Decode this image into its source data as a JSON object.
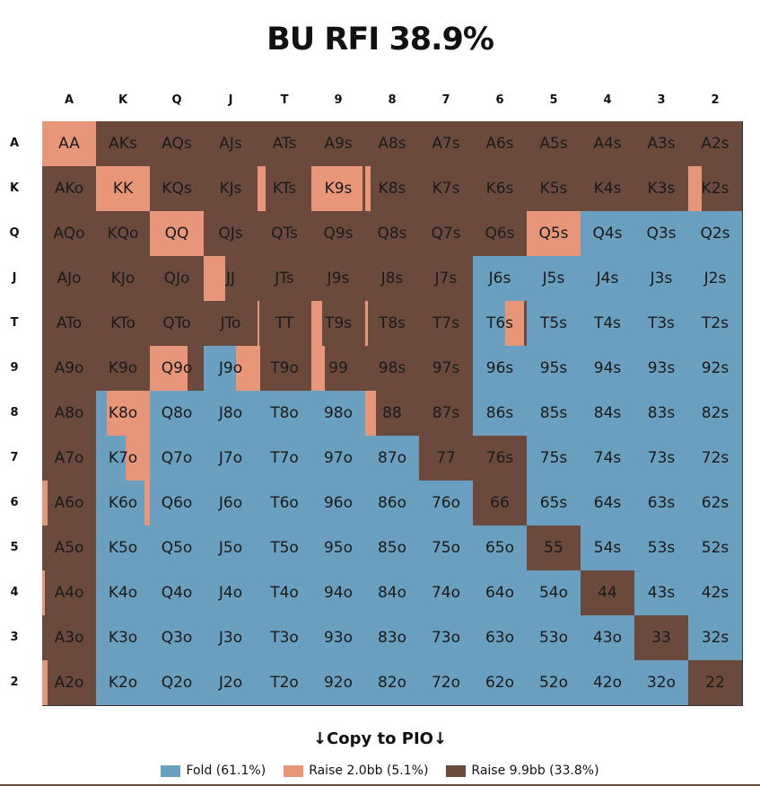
{
  "title": "BU RFI 38.9%",
  "ranks": [
    "A",
    "K",
    "Q",
    "J",
    "T",
    "9",
    "8",
    "7",
    "6",
    "5",
    "4",
    "3",
    "2"
  ],
  "colors": {
    "fold": "#6a9fbf",
    "raise2": "#e8967a",
    "raise99": "#6b4a3d"
  },
  "copy_label": "↓Copy to PIO↓",
  "legend": [
    {
      "key": "fold",
      "label": "Fold (61.1%)"
    },
    {
      "key": "raise2",
      "label": "Raise 2.0bb (5.1%)"
    },
    {
      "key": "raise99",
      "label": "Raise 9.9bb (33.8%)"
    }
  ],
  "hands": [
    [
      {
        "h": "AA",
        "f": 0,
        "r": 1
      },
      {
        "h": "AKs",
        "f": 0,
        "r": 0
      },
      {
        "h": "AQs",
        "f": 0,
        "r": 0
      },
      {
        "h": "AJs",
        "f": 0,
        "r": 0
      },
      {
        "h": "ATs",
        "f": 0,
        "r": 0
      },
      {
        "h": "A9s",
        "f": 0,
        "r": 0
      },
      {
        "h": "A8s",
        "f": 0,
        "r": 0
      },
      {
        "h": "A7s",
        "f": 0,
        "r": 0
      },
      {
        "h": "A6s",
        "f": 0,
        "r": 0
      },
      {
        "h": "A5s",
        "f": 0,
        "r": 0
      },
      {
        "h": "A4s",
        "f": 0,
        "r": 0
      },
      {
        "h": "A3s",
        "f": 0,
        "r": 0
      },
      {
        "h": "A2s",
        "f": 0,
        "r": 0
      }
    ],
    [
      {
        "h": "AKo",
        "f": 0,
        "r": 0
      },
      {
        "h": "KK",
        "f": 0,
        "r": 1
      },
      {
        "h": "KQs",
        "f": 0,
        "r": 0
      },
      {
        "h": "KJs",
        "f": 0,
        "r": 0
      },
      {
        "h": "KTs",
        "f": 0,
        "r": 0.15
      },
      {
        "h": "K9s",
        "f": 0,
        "r": 0.95
      },
      {
        "h": "K8s",
        "f": 0,
        "r": 0.1
      },
      {
        "h": "K7s",
        "f": 0,
        "r": 0
      },
      {
        "h": "K6s",
        "f": 0,
        "r": 0
      },
      {
        "h": "K5s",
        "f": 0,
        "r": 0
      },
      {
        "h": "K4s",
        "f": 0,
        "r": 0
      },
      {
        "h": "K3s",
        "f": 0,
        "r": 0
      },
      {
        "h": "K2s",
        "f": 0,
        "r": 0.25
      }
    ],
    [
      {
        "h": "AQo",
        "f": 0,
        "r": 0
      },
      {
        "h": "KQo",
        "f": 0,
        "r": 0
      },
      {
        "h": "QQ",
        "f": 0,
        "r": 1
      },
      {
        "h": "QJs",
        "f": 0,
        "r": 0
      },
      {
        "h": "QTs",
        "f": 0,
        "r": 0
      },
      {
        "h": "Q9s",
        "f": 0,
        "r": 0
      },
      {
        "h": "Q8s",
        "f": 0,
        "r": 0
      },
      {
        "h": "Q7s",
        "f": 0,
        "r": 0
      },
      {
        "h": "Q6s",
        "f": 0,
        "r": 0
      },
      {
        "h": "Q5s",
        "f": 0,
        "r": 1
      },
      {
        "h": "Q4s",
        "f": 1,
        "r": 0
      },
      {
        "h": "Q3s",
        "f": 1,
        "r": 0
      },
      {
        "h": "Q2s",
        "f": 1,
        "r": 0
      }
    ],
    [
      {
        "h": "AJo",
        "f": 0,
        "r": 0
      },
      {
        "h": "KJo",
        "f": 0,
        "r": 0
      },
      {
        "h": "QJo",
        "f": 0,
        "r": 0
      },
      {
        "h": "JJ",
        "f": 0,
        "r": 0.4
      },
      {
        "h": "JTs",
        "f": 0,
        "r": 0
      },
      {
        "h": "J9s",
        "f": 0,
        "r": 0
      },
      {
        "h": "J8s",
        "f": 0,
        "r": 0
      },
      {
        "h": "J7s",
        "f": 0,
        "r": 0
      },
      {
        "h": "J6s",
        "f": 1,
        "r": 0
      },
      {
        "h": "J5s",
        "f": 1,
        "r": 0
      },
      {
        "h": "J4s",
        "f": 1,
        "r": 0
      },
      {
        "h": "J3s",
        "f": 1,
        "r": 0
      },
      {
        "h": "J2s",
        "f": 1,
        "r": 0
      }
    ],
    [
      {
        "h": "ATo",
        "f": 0,
        "r": 0
      },
      {
        "h": "KTo",
        "f": 0,
        "r": 0
      },
      {
        "h": "QTo",
        "f": 0,
        "r": 0
      },
      {
        "h": "JTo",
        "f": 0,
        "r": 0
      },
      {
        "h": "TT",
        "f": 0,
        "r": 0.03
      },
      {
        "h": "T9s",
        "f": 0,
        "r": 0.2
      },
      {
        "h": "T8s",
        "f": 0,
        "r": 0.05
      },
      {
        "h": "T7s",
        "f": 0,
        "r": 0
      },
      {
        "h": "T6s",
        "f": 0.6,
        "r": 0.35
      },
      {
        "h": "T5s",
        "f": 1,
        "r": 0
      },
      {
        "h": "T4s",
        "f": 1,
        "r": 0
      },
      {
        "h": "T3s",
        "f": 1,
        "r": 0
      },
      {
        "h": "T2s",
        "f": 1,
        "r": 0
      }
    ],
    [
      {
        "h": "A9o",
        "f": 0,
        "r": 0
      },
      {
        "h": "K9o",
        "f": 0,
        "r": 0
      },
      {
        "h": "Q9o",
        "f": 0,
        "r": 0.7
      },
      {
        "h": "J9o",
        "f": 0.6,
        "r": 0.4
      },
      {
        "h": "T9o",
        "f": 0,
        "r": 0.05
      },
      {
        "h": "99",
        "f": 0,
        "r": 0.25
      },
      {
        "h": "98s",
        "f": 0,
        "r": 0
      },
      {
        "h": "97s",
        "f": 0,
        "r": 0
      },
      {
        "h": "96s",
        "f": 1,
        "r": 0
      },
      {
        "h": "95s",
        "f": 1,
        "r": 0
      },
      {
        "h": "94s",
        "f": 1,
        "r": 0
      },
      {
        "h": "93s",
        "f": 1,
        "r": 0
      },
      {
        "h": "92s",
        "f": 1,
        "r": 0
      }
    ],
    [
      {
        "h": "A8o",
        "f": 0,
        "r": 0
      },
      {
        "h": "K8o",
        "f": 0.2,
        "r": 0.8
      },
      {
        "h": "Q8o",
        "f": 1,
        "r": 0
      },
      {
        "h": "J8o",
        "f": 1,
        "r": 0
      },
      {
        "h": "T8o",
        "f": 1,
        "r": 0
      },
      {
        "h": "98o",
        "f": 1,
        "r": 0
      },
      {
        "h": "88",
        "f": 0,
        "r": 0.2
      },
      {
        "h": "87s",
        "f": 0,
        "r": 0
      },
      {
        "h": "86s",
        "f": 1,
        "r": 0
      },
      {
        "h": "85s",
        "f": 1,
        "r": 0
      },
      {
        "h": "84s",
        "f": 1,
        "r": 0
      },
      {
        "h": "83s",
        "f": 1,
        "r": 0
      },
      {
        "h": "82s",
        "f": 1,
        "r": 0
      }
    ],
    [
      {
        "h": "A7o",
        "f": 0,
        "r": 0
      },
      {
        "h": "K7o",
        "f": 0.55,
        "r": 0.45
      },
      {
        "h": "Q7o",
        "f": 1,
        "r": 0
      },
      {
        "h": "J7o",
        "f": 1,
        "r": 0
      },
      {
        "h": "T7o",
        "f": 1,
        "r": 0
      },
      {
        "h": "97o",
        "f": 1,
        "r": 0
      },
      {
        "h": "87o",
        "f": 1,
        "r": 0
      },
      {
        "h": "77",
        "f": 0,
        "r": 0
      },
      {
        "h": "76s",
        "f": 0,
        "r": 0
      },
      {
        "h": "75s",
        "f": 1,
        "r": 0
      },
      {
        "h": "74s",
        "f": 1,
        "r": 0
      },
      {
        "h": "73s",
        "f": 1,
        "r": 0
      },
      {
        "h": "72s",
        "f": 1,
        "r": 0
      }
    ],
    [
      {
        "h": "A6o",
        "f": 0,
        "r": 0.1
      },
      {
        "h": "K6o",
        "f": 0.9,
        "r": 0.1
      },
      {
        "h": "Q6o",
        "f": 1,
        "r": 0
      },
      {
        "h": "J6o",
        "f": 1,
        "r": 0
      },
      {
        "h": "T6o",
        "f": 1,
        "r": 0
      },
      {
        "h": "96o",
        "f": 1,
        "r": 0
      },
      {
        "h": "86o",
        "f": 1,
        "r": 0
      },
      {
        "h": "76o",
        "f": 1,
        "r": 0
      },
      {
        "h": "66",
        "f": 0,
        "r": 0
      },
      {
        "h": "65s",
        "f": 1,
        "r": 0
      },
      {
        "h": "64s",
        "f": 1,
        "r": 0
      },
      {
        "h": "63s",
        "f": 1,
        "r": 0
      },
      {
        "h": "62s",
        "f": 1,
        "r": 0
      }
    ],
    [
      {
        "h": "A5o",
        "f": 0,
        "r": 0
      },
      {
        "h": "K5o",
        "f": 1,
        "r": 0
      },
      {
        "h": "Q5o",
        "f": 1,
        "r": 0
      },
      {
        "h": "J5o",
        "f": 1,
        "r": 0
      },
      {
        "h": "T5o",
        "f": 1,
        "r": 0
      },
      {
        "h": "95o",
        "f": 1,
        "r": 0
      },
      {
        "h": "85o",
        "f": 1,
        "r": 0
      },
      {
        "h": "75o",
        "f": 1,
        "r": 0
      },
      {
        "h": "65o",
        "f": 1,
        "r": 0
      },
      {
        "h": "55",
        "f": 0,
        "r": 0
      },
      {
        "h": "54s",
        "f": 1,
        "r": 0
      },
      {
        "h": "53s",
        "f": 1,
        "r": 0
      },
      {
        "h": "52s",
        "f": 1,
        "r": 0
      }
    ],
    [
      {
        "h": "A4o",
        "f": 0,
        "r": 0.05
      },
      {
        "h": "K4o",
        "f": 1,
        "r": 0
      },
      {
        "h": "Q4o",
        "f": 1,
        "r": 0
      },
      {
        "h": "J4o",
        "f": 1,
        "r": 0
      },
      {
        "h": "T4o",
        "f": 1,
        "r": 0
      },
      {
        "h": "94o",
        "f": 1,
        "r": 0
      },
      {
        "h": "84o",
        "f": 1,
        "r": 0
      },
      {
        "h": "74o",
        "f": 1,
        "r": 0
      },
      {
        "h": "64o",
        "f": 1,
        "r": 0
      },
      {
        "h": "54o",
        "f": 1,
        "r": 0
      },
      {
        "h": "44",
        "f": 0,
        "r": 0
      },
      {
        "h": "43s",
        "f": 1,
        "r": 0
      },
      {
        "h": "42s",
        "f": 1,
        "r": 0
      }
    ],
    [
      {
        "h": "A3o",
        "f": 0,
        "r": 0
      },
      {
        "h": "K3o",
        "f": 1,
        "r": 0
      },
      {
        "h": "Q3o",
        "f": 1,
        "r": 0
      },
      {
        "h": "J3o",
        "f": 1,
        "r": 0
      },
      {
        "h": "T3o",
        "f": 1,
        "r": 0
      },
      {
        "h": "93o",
        "f": 1,
        "r": 0
      },
      {
        "h": "83o",
        "f": 1,
        "r": 0
      },
      {
        "h": "73o",
        "f": 1,
        "r": 0
      },
      {
        "h": "63o",
        "f": 1,
        "r": 0
      },
      {
        "h": "53o",
        "f": 1,
        "r": 0
      },
      {
        "h": "43o",
        "f": 1,
        "r": 0
      },
      {
        "h": "33",
        "f": 0,
        "r": 0
      },
      {
        "h": "32s",
        "f": 1,
        "r": 0
      }
    ],
    [
      {
        "h": "A2o",
        "f": 0,
        "r": 0.1
      },
      {
        "h": "K2o",
        "f": 1,
        "r": 0
      },
      {
        "h": "Q2o",
        "f": 1,
        "r": 0
      },
      {
        "h": "J2o",
        "f": 1,
        "r": 0
      },
      {
        "h": "T2o",
        "f": 1,
        "r": 0
      },
      {
        "h": "92o",
        "f": 1,
        "r": 0
      },
      {
        "h": "82o",
        "f": 1,
        "r": 0
      },
      {
        "h": "72o",
        "f": 1,
        "r": 0
      },
      {
        "h": "62o",
        "f": 1,
        "r": 0
      },
      {
        "h": "52o",
        "f": 1,
        "r": 0
      },
      {
        "h": "42o",
        "f": 1,
        "r": 0
      },
      {
        "h": "32o",
        "f": 1,
        "r": 0
      },
      {
        "h": "22",
        "f": 0,
        "r": 0
      }
    ]
  ]
}
